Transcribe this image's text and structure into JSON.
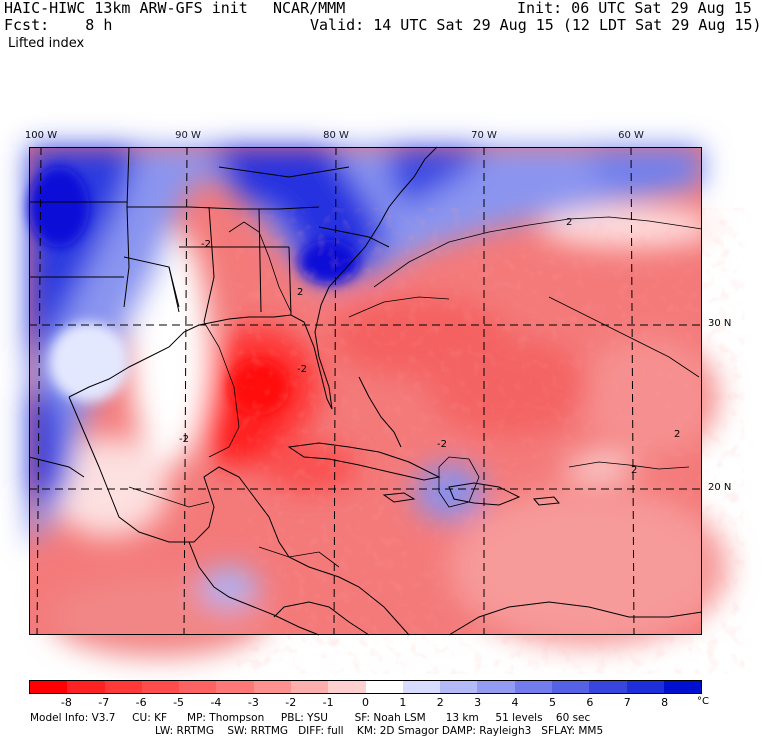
{
  "header": {
    "model_title": "HAIC-HIWC 13km ARW-GFS init",
    "org": "NCAR/MMM",
    "init": "Init: 06 UTC Sat 29 Aug 15",
    "fcst": "Fcst:    8 h",
    "valid": "Valid: 14 UTC Sat 29 Aug 15 (12 LDT Sat 29 Aug 15)",
    "field": "Lifted index"
  },
  "axes": {
    "lon_labels": [
      "100 W",
      "90 W",
      "80 W",
      "70 W",
      "60 W"
    ],
    "lat_labels": [
      "30 N",
      "20 N"
    ]
  },
  "map": {
    "contour_labels": [
      "2",
      "-2"
    ],
    "colors": {
      "strong_unstable": "#ff1a1a",
      "unstable": "#f06060",
      "neutral": "#ffffff",
      "stable": "#7a8aee",
      "strong_stable": "#1a1ae0"
    }
  },
  "colorbar": {
    "ticks": [
      "-8",
      "-7",
      "-6",
      "-5",
      "-4",
      "-3",
      "-2",
      "-1",
      "0",
      "1",
      "2",
      "3",
      "4",
      "5",
      "6",
      "7",
      "8"
    ],
    "unit": "°C",
    "colors": [
      "#ff0000",
      "#ff2222",
      "#ff3838",
      "#ff4d4d",
      "#ff6262",
      "#ff7878",
      "#ff9090",
      "#ffaeae",
      "#ffd0d0",
      "#ffffff",
      "#d8dcff",
      "#b4baf8",
      "#939bf2",
      "#727cec",
      "#5561e6",
      "#3846de",
      "#1e2ed8",
      "#0010d0"
    ]
  },
  "footer": {
    "line1": "Model Info: V3.7     CU: KF      MP: Thompson     PBL: YSU        SF: Noah LSM      13 km     51 levels    60 sec",
    "line2": "LW: RRTMG    SW: RRTMG   DIFF: full    KM: 2D Smagor DAMP: Rayleigh3   SFLAY: MM5"
  }
}
